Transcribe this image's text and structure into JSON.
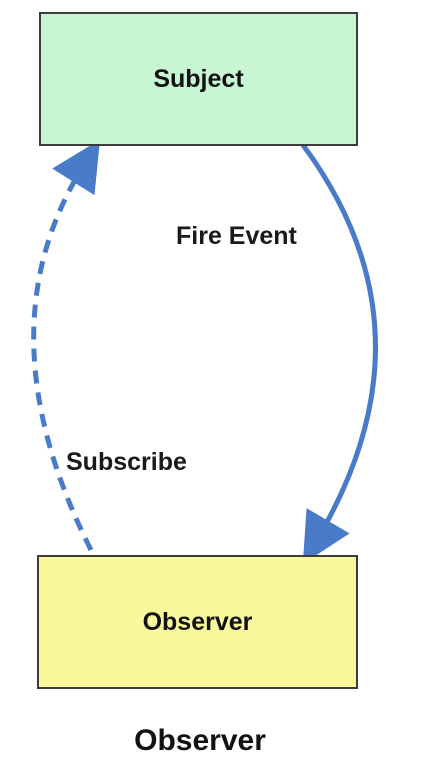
{
  "diagram": {
    "nodes": {
      "subject": {
        "label": "Subject"
      },
      "observer": {
        "label": "Observer"
      }
    },
    "edges": {
      "fire_event": {
        "label": "Fire Event",
        "style": "solid",
        "from": "Subject",
        "to": "Observer"
      },
      "subscribe": {
        "label": "Subscribe",
        "style": "dashed",
        "from": "Observer",
        "to": "Subject"
      }
    },
    "caption": "Observer",
    "colors": {
      "subject_fill": "#c8f5d2",
      "observer_fill": "#fbf79c",
      "arrow": "#4a7bc8",
      "border": "#3c3c3c"
    }
  }
}
